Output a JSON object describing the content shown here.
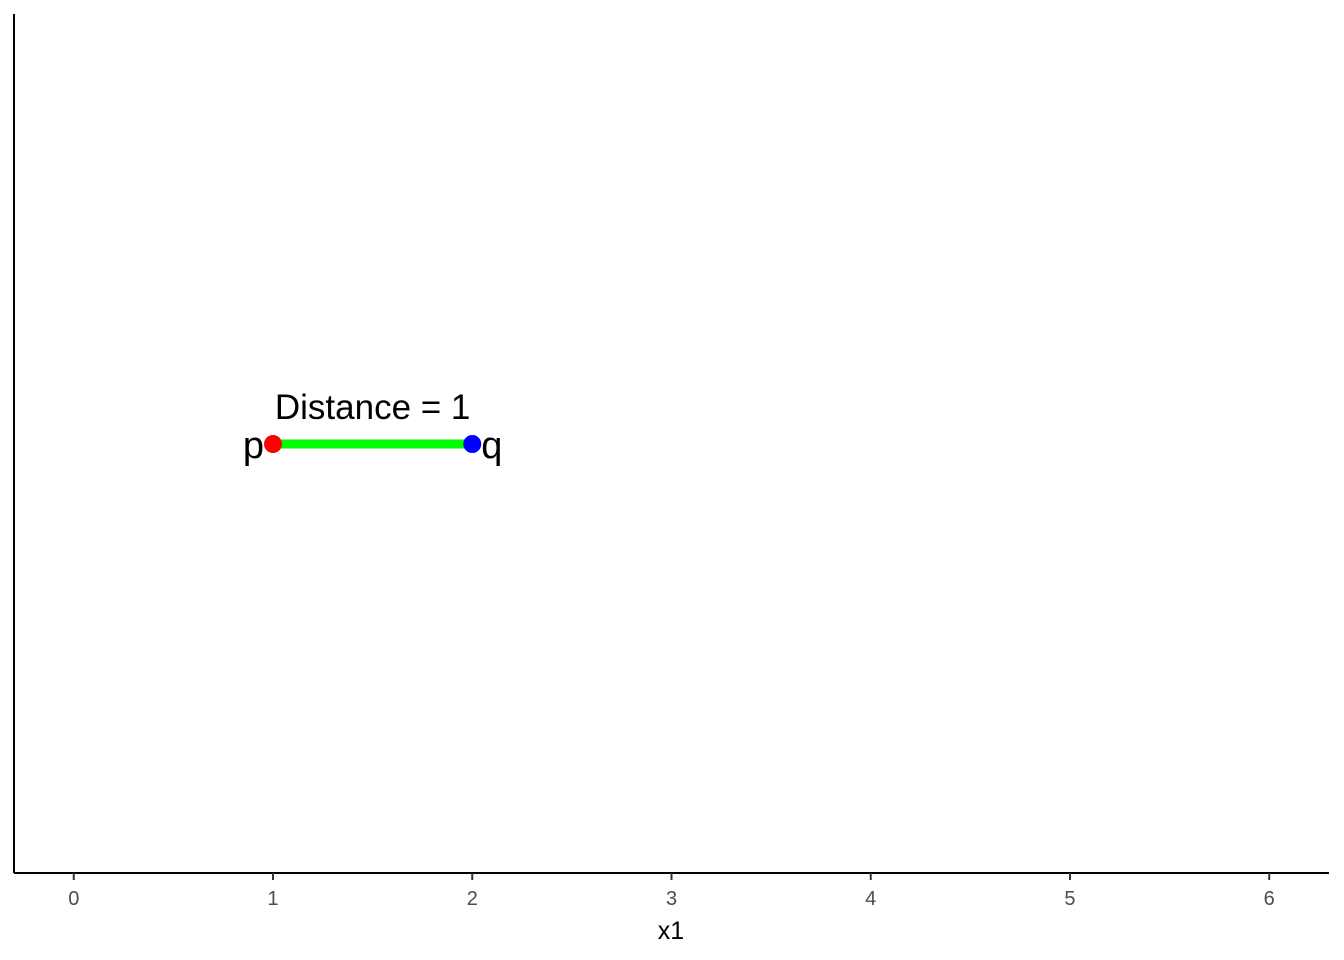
{
  "chart_data": {
    "type": "scatter",
    "title": "",
    "xlabel": "x1",
    "ylabel": "",
    "xlim": [
      -0.3,
      6.3
    ],
    "x_ticks": [
      0,
      1,
      2,
      3,
      4,
      5,
      6
    ],
    "y_ticks": [],
    "grid": false,
    "points": [
      {
        "label": "p",
        "x": 1,
        "color": "#ff0000",
        "label_side": "left"
      },
      {
        "label": "q",
        "x": 2,
        "color": "#0000ff",
        "label_side": "right"
      }
    ],
    "segment": {
      "from": 1,
      "to": 2,
      "color": "#00ff00"
    },
    "annotation": {
      "text": "Distance = 1",
      "x": 1.5
    }
  }
}
